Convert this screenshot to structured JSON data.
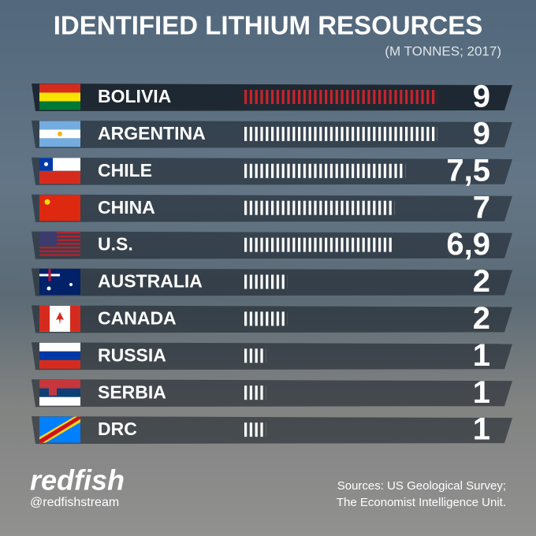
{
  "chart_data": {
    "type": "bar",
    "orientation": "horizontal",
    "title": "IDENTIFIED LITHIUM RESOURCES",
    "subtitle": "(M TONNES; 2017)",
    "categories": [
      "BOLIVIA",
      "ARGENTINA",
      "CHILE",
      "CHINA",
      "U.S.",
      "AUSTRALIA",
      "CANADA",
      "RUSSIA",
      "SERBIA",
      "DRC"
    ],
    "values": [
      9,
      9,
      7.5,
      7,
      6.9,
      2,
      2,
      1,
      1,
      1
    ],
    "value_labels": [
      "9",
      "9",
      "7,5",
      "7",
      "6,9",
      "2",
      "2",
      "1",
      "1",
      "1"
    ],
    "colors": [
      "#c8242b",
      "#ffffff",
      "#ffffff",
      "#ffffff",
      "#ffffff",
      "#ffffff",
      "#ffffff",
      "#ffffff",
      "#ffffff",
      "#ffffff"
    ]
  },
  "footer": {
    "brand": "redfish",
    "handle": "@redfishstream",
    "sources": [
      "Sources: US Geological Survey;",
      "The Economist Intelligence Unit."
    ]
  }
}
